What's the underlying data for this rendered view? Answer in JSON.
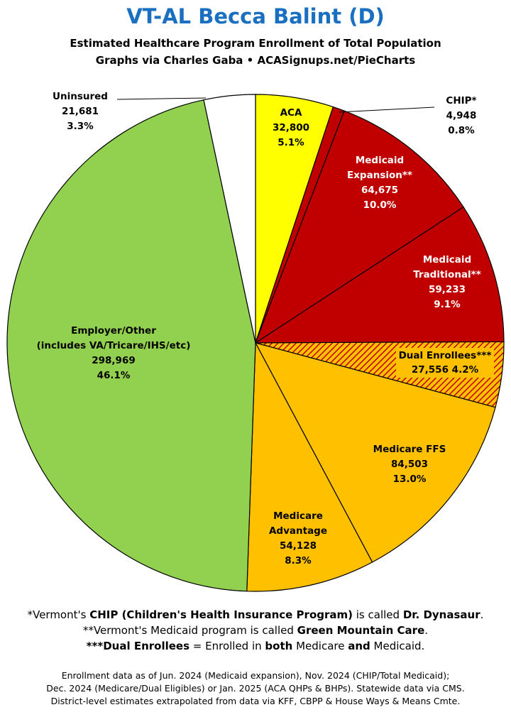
{
  "title": "VT-AL Becca Balint (D)",
  "subtitle_line1": "Estimated Healthcare Program Enrollment of Total Population",
  "subtitle_line2": "Graphs via Charles Gaba  •  ACASignups.net/PieCharts",
  "chart_data": {
    "type": "pie",
    "start_angle_deg": 0,
    "direction": "clockwise",
    "slices": [
      {
        "label": [
          "ACA"
        ],
        "value": 32800,
        "value_text": "32,800",
        "percent": "5.1%",
        "color": "#ffff00",
        "text_color": "#000000",
        "hatched": false
      },
      {
        "label": [
          "CHIP*"
        ],
        "value": 4948,
        "value_text": "4,948",
        "percent": "0.8%",
        "color": "#c00000",
        "text_color": "#000000",
        "hatched": false,
        "callout": true
      },
      {
        "label": [
          "Medicaid",
          "Expansion**"
        ],
        "value": 64675,
        "value_text": "64,675",
        "percent": "10.0%",
        "color": "#c00000",
        "text_color": "#ffffff",
        "hatched": false
      },
      {
        "label": [
          "Medicaid",
          "Traditional**"
        ],
        "value": 59233,
        "value_text": "59,233",
        "percent": "9.1%",
        "color": "#c00000",
        "text_color": "#ffffff",
        "hatched": false
      },
      {
        "label": [
          "Dual Enrollees***"
        ],
        "value": 27556,
        "value_text": "27,556",
        "percent": "4.2%",
        "color": "#ffc000",
        "text_color": "#000000",
        "hatched": true,
        "hatch_color": "#c00000",
        "inline": true
      },
      {
        "label": [
          "Medicare FFS"
        ],
        "value": 84503,
        "value_text": "84,503",
        "percent": "13.0%",
        "color": "#ffc000",
        "text_color": "#000000",
        "hatched": false
      },
      {
        "label": [
          "Medicare",
          "Advantage"
        ],
        "value": 54128,
        "value_text": "54,128",
        "percent": "8.3%",
        "color": "#ffc000",
        "text_color": "#000000",
        "hatched": false
      },
      {
        "label": [
          "Employer/Other",
          "(includes VA/Tricare/IHS/etc)"
        ],
        "value": 298969,
        "value_text": "298,969",
        "percent": "46.1%",
        "color": "#92d050",
        "text_color": "#000000",
        "hatched": false
      },
      {
        "label": [
          "Uninsured"
        ],
        "value": 21681,
        "value_text": "21,681",
        "percent": "3.3%",
        "color": "#ffffff",
        "text_color": "#000000",
        "hatched": false,
        "callout": true
      }
    ]
  },
  "footnotes": {
    "chip": [
      "*Vermont's ",
      "CHIP (Children's Health Insurance Program)",
      " is called ",
      "Dr. Dynasaur",
      "."
    ],
    "medicaid": [
      "**Vermont's Medicaid program is called ",
      "Green Mountain Care",
      "."
    ],
    "dual": [
      "***Dual Enrollees",
      " = Enrolled in ",
      "both",
      " Medicare ",
      "and",
      " Medicaid."
    ]
  },
  "source_lines": [
    "Enrollment data as of Jun. 2024 (Medicaid expansion), Nov. 2024 (CHIP/Total Medicaid);",
    "Dec. 2024 (Medicare/Dual Eligibles) or Jan. 2025 (ACA QHPs & BHPs). Statewide data via CMS.",
    "District-level estimates extrapolated from data via KFF, CBPP & House Ways & Means Cmte."
  ]
}
